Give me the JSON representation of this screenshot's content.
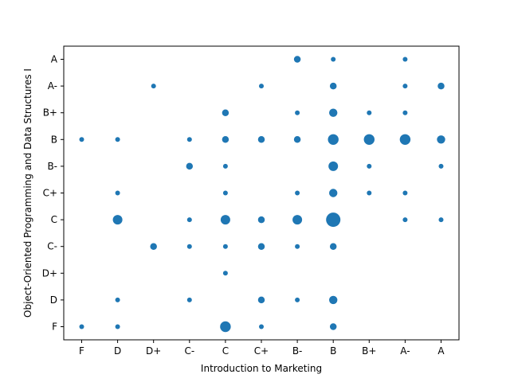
{
  "chart_data": {
    "type": "scatter",
    "xlabel": "Introduction to Marketing",
    "ylabel": "Object-Oriented Programming and Data Structures I",
    "x_categories": [
      "F",
      "D",
      "D+",
      "C-",
      "C",
      "C+",
      "B-",
      "B",
      "B+",
      "A-",
      "A"
    ],
    "y_categories": [
      "F",
      "D",
      "D+",
      "C-",
      "C",
      "C+",
      "B-",
      "B",
      "B+",
      "A-",
      "A"
    ],
    "marker_color": "#1f77b4",
    "size_encoding": "relative count of students with each grade pair",
    "points": [
      {
        "x": "B-",
        "y": "A",
        "count": 2
      },
      {
        "x": "B",
        "y": "A",
        "count": 1
      },
      {
        "x": "A-",
        "y": "A",
        "count": 1
      },
      {
        "x": "D+",
        "y": "A-",
        "count": 1
      },
      {
        "x": "C+",
        "y": "A-",
        "count": 1
      },
      {
        "x": "B",
        "y": "A-",
        "count": 2
      },
      {
        "x": "A-",
        "y": "A-",
        "count": 1
      },
      {
        "x": "A",
        "y": "A-",
        "count": 2
      },
      {
        "x": "C",
        "y": "B+",
        "count": 2
      },
      {
        "x": "B-",
        "y": "B+",
        "count": 1
      },
      {
        "x": "B",
        "y": "B+",
        "count": 3
      },
      {
        "x": "B+",
        "y": "B+",
        "count": 1
      },
      {
        "x": "A-",
        "y": "B+",
        "count": 1
      },
      {
        "x": "F",
        "y": "B",
        "count": 1
      },
      {
        "x": "D",
        "y": "B",
        "count": 1
      },
      {
        "x": "C-",
        "y": "B",
        "count": 1
      },
      {
        "x": "C",
        "y": "B",
        "count": 2
      },
      {
        "x": "C+",
        "y": "B",
        "count": 2
      },
      {
        "x": "B-",
        "y": "B",
        "count": 2
      },
      {
        "x": "B",
        "y": "B",
        "count": 5
      },
      {
        "x": "B+",
        "y": "B",
        "count": 5
      },
      {
        "x": "A-",
        "y": "B",
        "count": 5
      },
      {
        "x": "A",
        "y": "B",
        "count": 3
      },
      {
        "x": "C-",
        "y": "B-",
        "count": 2
      },
      {
        "x": "C",
        "y": "B-",
        "count": 1
      },
      {
        "x": "B",
        "y": "B-",
        "count": 4
      },
      {
        "x": "B+",
        "y": "B-",
        "count": 1
      },
      {
        "x": "A",
        "y": "B-",
        "count": 1
      },
      {
        "x": "D",
        "y": "C+",
        "count": 1
      },
      {
        "x": "C",
        "y": "C+",
        "count": 1
      },
      {
        "x": "B-",
        "y": "C+",
        "count": 1
      },
      {
        "x": "B",
        "y": "C+",
        "count": 3
      },
      {
        "x": "B+",
        "y": "C+",
        "count": 1
      },
      {
        "x": "A-",
        "y": "C+",
        "count": 1
      },
      {
        "x": "D",
        "y": "C",
        "count": 4
      },
      {
        "x": "C-",
        "y": "C",
        "count": 1
      },
      {
        "x": "C",
        "y": "C",
        "count": 4
      },
      {
        "x": "C+",
        "y": "C",
        "count": 2
      },
      {
        "x": "B-",
        "y": "C",
        "count": 4
      },
      {
        "x": "B",
        "y": "C",
        "count": 9
      },
      {
        "x": "A-",
        "y": "C",
        "count": 1
      },
      {
        "x": "A",
        "y": "C",
        "count": 1
      },
      {
        "x": "D+",
        "y": "C-",
        "count": 2
      },
      {
        "x": "C-",
        "y": "C-",
        "count": 1
      },
      {
        "x": "C",
        "y": "C-",
        "count": 1
      },
      {
        "x": "C+",
        "y": "C-",
        "count": 2
      },
      {
        "x": "B-",
        "y": "C-",
        "count": 1
      },
      {
        "x": "B",
        "y": "C-",
        "count": 2
      },
      {
        "x": "C",
        "y": "D+",
        "count": 1
      },
      {
        "x": "D",
        "y": "D",
        "count": 1
      },
      {
        "x": "C-",
        "y": "D",
        "count": 1
      },
      {
        "x": "C+",
        "y": "D",
        "count": 2
      },
      {
        "x": "B-",
        "y": "D",
        "count": 1
      },
      {
        "x": "B",
        "y": "D",
        "count": 3
      },
      {
        "x": "F",
        "y": "F",
        "count": 1
      },
      {
        "x": "D",
        "y": "F",
        "count": 1
      },
      {
        "x": "C",
        "y": "F",
        "count": 5
      },
      {
        "x": "C+",
        "y": "F",
        "count": 1
      },
      {
        "x": "B",
        "y": "F",
        "count": 2
      }
    ]
  }
}
